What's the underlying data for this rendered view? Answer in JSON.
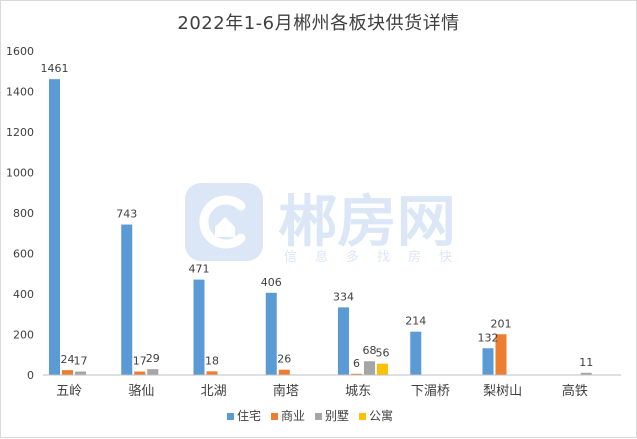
{
  "chart_data": {
    "type": "bar",
    "title": "2022年1-6月郴州各板块供货详情",
    "categories": [
      "五岭",
      "骆仙",
      "北湖",
      "南塔",
      "城东",
      "下湄桥",
      "梨树山",
      "高铁"
    ],
    "series": [
      {
        "name": "住宅",
        "color": "#5b9bd5",
        "values": [
          1461,
          743,
          471,
          406,
          334,
          214,
          132,
          0
        ]
      },
      {
        "name": "商业",
        "color": "#ed7d31",
        "values": [
          24,
          17,
          18,
          26,
          6,
          0,
          201,
          0
        ]
      },
      {
        "name": "别墅",
        "color": "#a5a5a5",
        "values": [
          17,
          29,
          0,
          0,
          68,
          0,
          0,
          11
        ]
      },
      {
        "name": "公寓",
        "color": "#ffc000",
        "values": [
          0,
          0,
          0,
          0,
          56,
          0,
          0,
          0
        ]
      }
    ],
    "data_labels": [
      [
        "1461",
        "743",
        "471",
        "406",
        "334",
        "214",
        "132",
        ""
      ],
      [
        "24",
        "17",
        "18",
        "26",
        "6",
        "",
        "201",
        ""
      ],
      [
        "17",
        "29",
        "",
        "",
        "68",
        "",
        "",
        "11"
      ],
      [
        "",
        "",
        "",
        "",
        "56",
        "",
        "",
        ""
      ]
    ],
    "ylim": [
      0,
      1600
    ],
    "yticks": [
      0,
      200,
      400,
      600,
      800,
      1000,
      1200,
      1400,
      1600
    ],
    "xlabel": "",
    "ylabel": "",
    "grid": false,
    "legend_position": "bottom-center"
  },
  "watermark": {
    "name": "郴房网",
    "slogan": [
      "信",
      "息",
      "多",
      "找",
      "房",
      "快"
    ],
    "color": "#dbe7f7"
  }
}
